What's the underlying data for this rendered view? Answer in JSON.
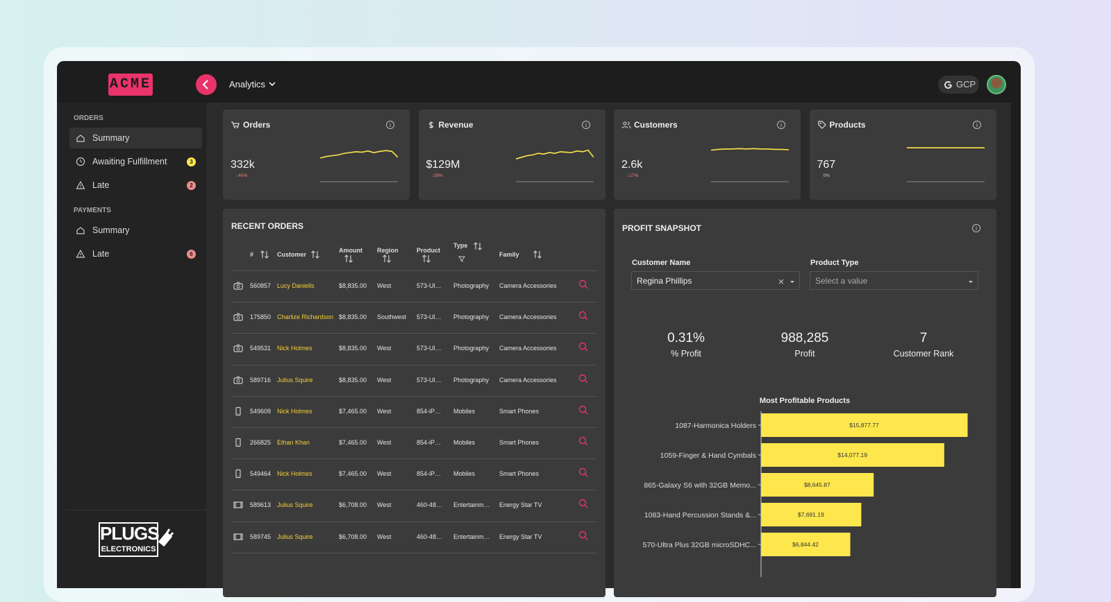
{
  "header": {
    "logo": "ACME",
    "menu": "Analytics",
    "cloud": "GCP"
  },
  "sidebar": {
    "sections": [
      {
        "title": "ORDERS",
        "items": [
          {
            "label": "Summary"
          },
          {
            "label": "Awaiting Fulfillment",
            "badge": 3
          },
          {
            "label": "Late",
            "badge": 2
          }
        ]
      },
      {
        "title": "PAYMENTS",
        "items": [
          {
            "label": "Summary"
          },
          {
            "label": "Late",
            "badge": 6
          }
        ]
      }
    ],
    "footer_logo": [
      "PLUGS",
      "ELECTRONICS"
    ]
  },
  "kpis": {
    "ylim": [
      0,
      100
    ],
    "cards": [
      {
        "title": "Orders",
        "value": "332k",
        "change": "↓40%",
        "trend": [
          58,
          62,
          64,
          66,
          70,
          72,
          74,
          73,
          76,
          72,
          75,
          77,
          75,
          60
        ]
      },
      {
        "title": "Revenue",
        "value": "$129M",
        "change": "↓39%",
        "trend": [
          56,
          60,
          64,
          66,
          70,
          68,
          72,
          70,
          74,
          73,
          72,
          76,
          74,
          78,
          60
        ]
      },
      {
        "title": "Customers",
        "value": "2.6k",
        "change": "↓17%",
        "trend": [
          78,
          80,
          81,
          81,
          82,
          81,
          82,
          81,
          81,
          80,
          80,
          79
        ]
      },
      {
        "title": "Products",
        "value": "767",
        "change": "0%",
        "trend": [
          84,
          84
        ]
      }
    ]
  },
  "recent_orders": {
    "title": "RECENT ORDERS",
    "columns": [
      "#",
      "Customer",
      "Amount",
      "Region",
      "Product",
      "Type",
      "Family"
    ],
    "rows": [
      [
        "560857",
        "Lucy Daniells",
        "$8,835.00",
        "West",
        "573-Ul…",
        "Photography",
        "Camera Accessories"
      ],
      [
        "175850",
        "Charlize Richardson",
        "$8,835.00",
        "Southwest",
        "573-Ul…",
        "Photography",
        "Camera Accessories"
      ],
      [
        "549531",
        "Nick Holmes",
        "$8,835.00",
        "West",
        "573-Ul…",
        "Photography",
        "Camera Accessories"
      ],
      [
        "589716",
        "Julius Squire",
        "$8,835.00",
        "West",
        "573-Ul…",
        "Photography",
        "Camera Accessories"
      ],
      [
        "549609",
        "Nick Holmes",
        "$7,465.00",
        "West",
        "854-iP…",
        "Mobiles",
        "Smart Phones"
      ],
      [
        "266825",
        "Ethan Khan",
        "$7,465.00",
        "West",
        "854-iP…",
        "Mobiles",
        "Smart Phones"
      ],
      [
        "549464",
        "Nick Holmes",
        "$7,465.00",
        "West",
        "854-iP…",
        "Mobiles",
        "Smart Phones"
      ],
      [
        "589613",
        "Julius Squire",
        "$6,708.00",
        "West",
        "460-48…",
        "Entertainm…",
        "Energy Star TV"
      ],
      [
        "589745",
        "Julius Squire",
        "$6,708.00",
        "West",
        "460-48…",
        "Entertainm…",
        "Energy Star TV"
      ]
    ]
  },
  "profit_snapshot": {
    "title": "PROFIT SNAPSHOT",
    "filters": [
      {
        "label": "Customer Name",
        "value": "Regina Phillips"
      },
      {
        "label": "Product Type",
        "value": "Select a value"
      }
    ],
    "stats": [
      {
        "value": "0.31%",
        "label": "% Profit"
      },
      {
        "value": "988,285",
        "label": "Profit"
      },
      {
        "value": "7",
        "label": "Customer Rank"
      }
    ]
  },
  "chart_data": {
    "type": "bar",
    "orientation": "horizontal",
    "title": "Most Profitable Products",
    "categories": [
      "1087-Harmonica Holders",
      "1059-Finger & Hand Cymbals",
      "865-Galaxy S6 with 32GB Memo...",
      "1083-Hand Percussion Stands &...",
      "570-Ultra Plus 32GB microSDHC..."
    ],
    "values": [
      15877.77,
      14077.19,
      8645.87,
      7691.19,
      6844.42
    ],
    "value_labels": [
      "$15,877.77",
      "$14,077.19",
      "$8,645.87",
      "$7,691.19",
      "$6,844.42"
    ],
    "color": "#fde74c"
  }
}
